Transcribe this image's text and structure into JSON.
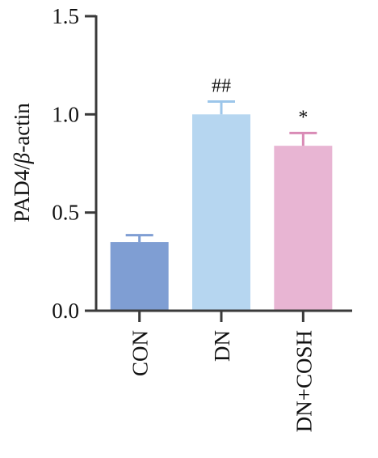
{
  "chart_data": {
    "type": "bar",
    "categories": [
      "CON",
      "DN",
      "DN+COSH"
    ],
    "values": [
      0.35,
      1.0,
      0.84
    ],
    "errors": [
      0.035,
      0.065,
      0.065
    ],
    "annotations": [
      "",
      "##",
      "*"
    ],
    "colors": [
      "#7f9ed3",
      "#b6d6f0",
      "#e8b5d3"
    ],
    "error_colors": [
      "#7f9ed3",
      "#9cc6ea",
      "#d98bb6"
    ],
    "ylabel_parts": [
      "PAD4/",
      "β",
      "-actin"
    ],
    "ylim": [
      0,
      1.5
    ],
    "yticks": [
      "0.0",
      "0.5",
      "1.0",
      "1.5"
    ],
    "grid": false
  }
}
